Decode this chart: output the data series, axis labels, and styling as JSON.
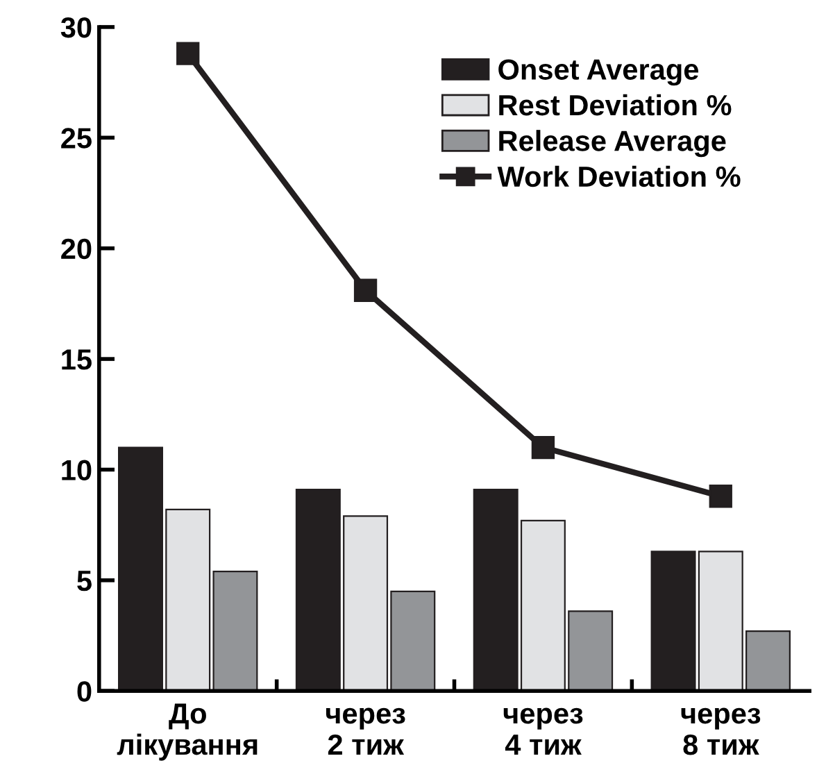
{
  "chart_data": {
    "type": "bar",
    "categories": [
      "До\nлікування",
      "через\n2 тиж",
      "через\n4 тиж",
      "через\n8 тиж"
    ],
    "series": [
      {
        "name": "Onset Average",
        "color": "#231f20",
        "values": [
          11,
          9.1,
          9.1,
          6.3
        ]
      },
      {
        "name": "Rest Deviation %",
        "color": "#e1e2e4",
        "values": [
          8.2,
          7.9,
          7.7,
          6.3
        ]
      },
      {
        "name": "Release Average",
        "color": "#939598",
        "values": [
          5.4,
          4.5,
          3.6,
          2.7
        ]
      },
      {
        "name": "Work Deviation %",
        "type": "line",
        "color": "#231f20",
        "marker": "square",
        "values": [
          28.8,
          18.1,
          11,
          8.8
        ]
      }
    ],
    "ylim": [
      0,
      30
    ],
    "yticks": [
      0,
      5,
      10,
      15,
      20,
      25,
      30
    ],
    "grid": false,
    "legend": "top right"
  }
}
